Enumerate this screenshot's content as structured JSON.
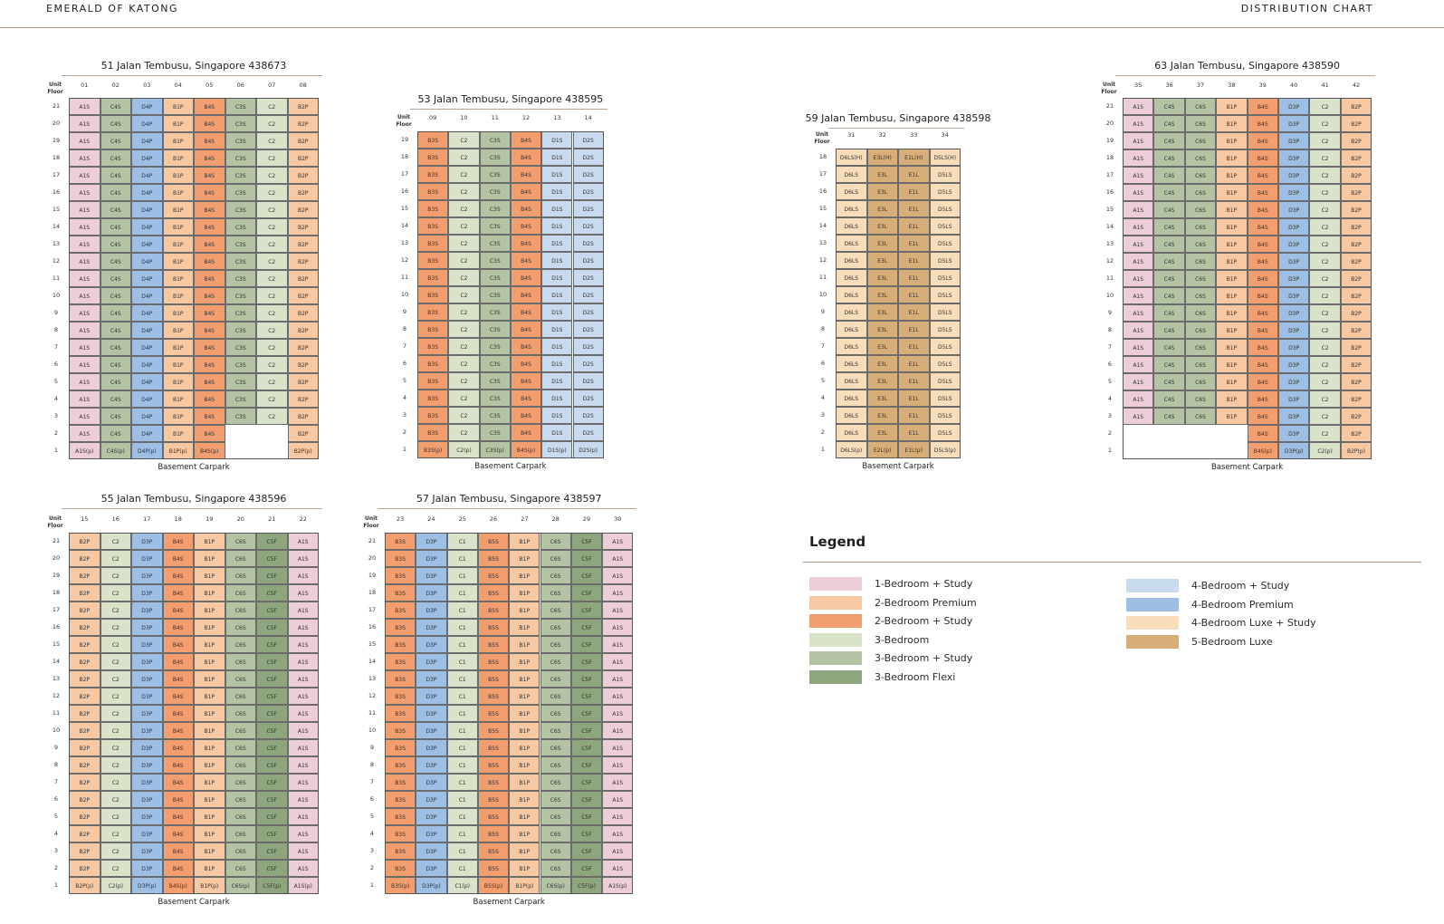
{
  "header": {
    "brand": "EMERALD OF KATONG",
    "title": "DISTRIBUTION CHART"
  },
  "unit_label": "Unit",
  "floor_label": "Floor",
  "basement_label": "Basement Carpark",
  "colors": {
    "A1S": "#eccdd8",
    "B2P": "#f8c8a3",
    "B3S": "#f29e6e",
    "B4S": "#f29e6e",
    "B5S": "#f29e6e",
    "B1P": "#f8c8a3",
    "C1": "#d8e3c9",
    "C2": "#d8e3c9",
    "C3S": "#b3c3a3",
    "C4S": "#b3c3a3",
    "C6S": "#b3c3a3",
    "C5F": "#8da67d",
    "D1S": "#c8dbee",
    "D2S": "#c8dbee",
    "D3P": "#9ebfe4",
    "D4P": "#9ebfe4",
    "D6LS": "#f8ddbb",
    "D5LS": "#f8ddbb",
    "E1L": "#d8ae78",
    "E2L": "#d8ae78",
    "E3L": "#d8ae78"
  },
  "blocks": [
    {
      "id": "51",
      "title": "51 Jalan Tembusu, Singapore 438673",
      "units": [
        "01",
        "02",
        "03",
        "04",
        "05",
        "06",
        "07",
        "08"
      ],
      "top_floor": 21,
      "types": [
        "A1S",
        "C4S",
        "D4P",
        "B1P",
        "B4S",
        "C3S",
        "C2",
        "B2P"
      ],
      "floor2": [
        "A1S",
        "C4S",
        "D4P",
        "B1P",
        "B4S",
        "",
        "",
        "B2P"
      ],
      "floor1": [
        "A1S(p)",
        "C4S(p)",
        "D4P(p)",
        "B1P(p)",
        "B4S(p)",
        "",
        "",
        "B2P(p)"
      ]
    },
    {
      "id": "53",
      "title": "53 Jalan Tembusu, Singapore 438595",
      "units": [
        "09",
        "10",
        "11",
        "12",
        "13",
        "14"
      ],
      "top_floor": 19,
      "types": [
        "B3S",
        "C2",
        "C3S",
        "B4S",
        "D1S",
        "D2S"
      ],
      "floor2": [
        "B3S",
        "C2",
        "C3S",
        "B4S",
        "D1S",
        "D2S"
      ],
      "floor1": [
        "B3S(p)",
        "C2(p)",
        "C3S(p)",
        "B4S(p)",
        "D1S(p)",
        "D2S(p)"
      ]
    },
    {
      "id": "59",
      "title": "59 Jalan Tembusu, Singapore 438598",
      "units": [
        "31",
        "32",
        "33",
        "34"
      ],
      "top_floor": 18,
      "types": [
        "D6LS",
        "E3L",
        "E1L",
        "D5LS"
      ],
      "top_row": [
        "D6LS(H)",
        "E3L(H)",
        "E1L(H)",
        "D5LS(H)"
      ],
      "floor2": [
        "D6LS",
        "E3L",
        "E1L",
        "D5LS"
      ],
      "floor1": [
        "D6LS(p)",
        "E2L(p)",
        "E1L(p)",
        "D5LS(p)"
      ]
    },
    {
      "id": "63",
      "title": "63 Jalan Tembusu, Singapore 438590",
      "units": [
        "35",
        "36",
        "37",
        "38",
        "39",
        "40",
        "41",
        "42"
      ],
      "top_floor": 21,
      "types": [
        "A1S",
        "C4S",
        "C6S",
        "B1P",
        "B4S",
        "D3P",
        "C2",
        "B2P"
      ],
      "floor2": [
        "",
        "",
        "",
        "",
        "B4S",
        "D3P",
        "C2",
        "B2P"
      ],
      "floor1": [
        "",
        "",
        "",
        "",
        "B4S(p)",
        "D3P(p)",
        "C2(p)",
        "B2P(p)"
      ]
    },
    {
      "id": "55",
      "title": "55 Jalan Tembusu, Singapore 438596",
      "units": [
        "15",
        "16",
        "17",
        "18",
        "19",
        "20",
        "21",
        "22"
      ],
      "top_floor": 21,
      "types": [
        "B2P",
        "C2",
        "D3P",
        "B4S",
        "B1P",
        "C6S",
        "C5F",
        "A1S"
      ],
      "floor2": [
        "B2P",
        "C2",
        "D3P",
        "B4S",
        "B1P",
        "C6S",
        "C5F",
        "A1S"
      ],
      "floor1": [
        "B2P(p)",
        "C2(p)",
        "D3P(p)",
        "B4S(p)",
        "B1P(p)",
        "C6S(p)",
        "C5F(p)",
        "A1S(p)"
      ]
    },
    {
      "id": "57",
      "title": "57 Jalan Tembusu, Singapore 438597",
      "units": [
        "23",
        "24",
        "25",
        "26",
        "27",
        "28",
        "29",
        "30"
      ],
      "top_floor": 21,
      "types": [
        "B3S",
        "D3P",
        "C1",
        "B5S",
        "B1P",
        "C6S",
        "C5F",
        "A1S"
      ],
      "floor2": [
        "B3S",
        "D3P",
        "C1",
        "B5S",
        "B1P",
        "C6S",
        "C5F",
        "A1S"
      ],
      "floor1": [
        "B3S(p)",
        "D3P(p)",
        "C1(p)",
        "B5S(p)",
        "B1P(p)",
        "C6S(p)",
        "C5F(p)",
        "A1S(p)"
      ]
    }
  ],
  "legend": {
    "title": "Legend",
    "items": [
      {
        "label": "1-Bedroom + Study",
        "color": "#eccdd8"
      },
      {
        "label": "2-Bedroom Premium",
        "color": "#f8c8a3"
      },
      {
        "label": "2-Bedroom + Study",
        "color": "#f29e6e"
      },
      {
        "label": "3-Bedroom",
        "color": "#d8e3c9"
      },
      {
        "label": "3-Bedroom + Study",
        "color": "#b3c3a3"
      },
      {
        "label": "3-Bedroom Flexi",
        "color": "#8da67d"
      },
      {
        "label": "4-Bedroom + Study",
        "color": "#c8dbee"
      },
      {
        "label": "4-Bedroom Premium",
        "color": "#9ebfe4"
      },
      {
        "label": "4-Bedroom Luxe + Study",
        "color": "#f8ddbb"
      },
      {
        "label": "5-Bedroom Luxe",
        "color": "#d8ae78"
      }
    ]
  }
}
